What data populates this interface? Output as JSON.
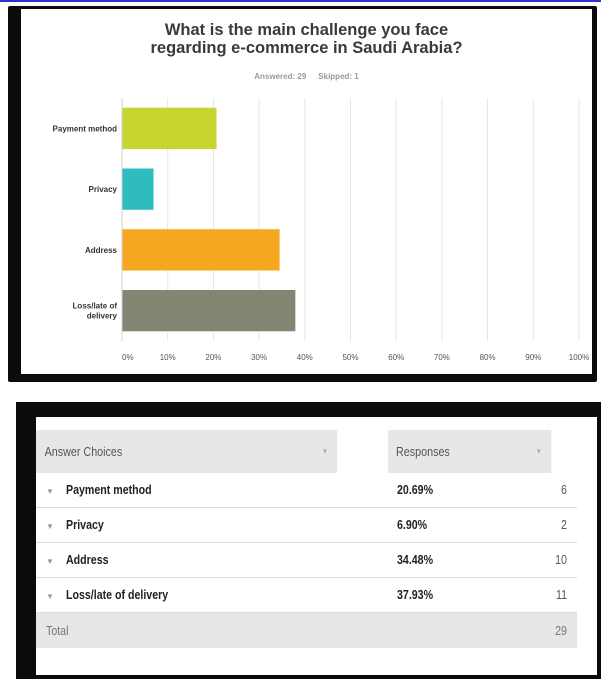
{
  "chart_data": {
    "type": "bar",
    "orientation": "horizontal",
    "title_lines": [
      "What is the main challenge you face",
      "regarding e-commerce in Saudi Arabia?"
    ],
    "answered_label": "Answered: 29",
    "skipped_label": "Skipped: 1",
    "categories": [
      "Payment method",
      "Privacy",
      "Address",
      "Loss/late of delivery"
    ],
    "category_lines": [
      [
        "Payment method"
      ],
      [
        "Privacy"
      ],
      [
        "Address"
      ],
      [
        "Loss/late of",
        "delivery"
      ]
    ],
    "values": [
      20.69,
      6.9,
      34.48,
      37.93
    ],
    "colors": [
      "#c8d42f",
      "#30bcbf",
      "#f5a81f",
      "#858574"
    ],
    "xlim": [
      0,
      100
    ],
    "x_ticks": [
      "0%",
      "10%",
      "20%",
      "30%",
      "40%",
      "50%",
      "60%",
      "70%",
      "80%",
      "90%",
      "100%"
    ],
    "grid": true
  },
  "table": {
    "header_choices": "Answer Choices",
    "header_responses": "Responses",
    "rows": [
      {
        "choice": "Payment method",
        "percent": "20.69%",
        "count": "6"
      },
      {
        "choice": "Privacy",
        "percent": "6.90%",
        "count": "2"
      },
      {
        "choice": "Address",
        "percent": "34.48%",
        "count": "10"
      },
      {
        "choice": "Loss/late of delivery",
        "percent": "37.93%",
        "count": "11"
      }
    ],
    "total_label": "Total",
    "total_count": "29"
  }
}
